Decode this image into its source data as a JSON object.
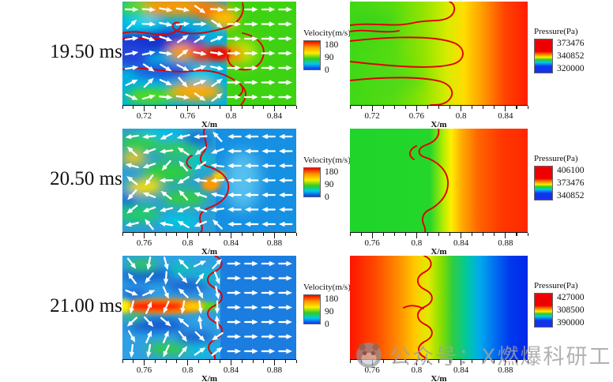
{
  "rows": [
    {
      "time_label": "19.50 ms",
      "velocity": {
        "legend_title": "Velocity(m/s)",
        "legend_values": [
          "180",
          "90",
          "0"
        ],
        "xticks": [
          "0.72",
          "0.76",
          "0.8",
          "0.84"
        ],
        "xlabel": "X/m"
      },
      "pressure": {
        "legend_title": "Pressure(Pa)",
        "legend_values": [
          "373476",
          "340852",
          "320000"
        ],
        "xticks": [
          "0.72",
          "0.76",
          "0.8",
          "0.84"
        ],
        "xlabel": "X/m"
      }
    },
    {
      "time_label": "20.50 ms",
      "velocity": {
        "legend_title": "Velocity(m/s)",
        "legend_values": [
          "180",
          "90",
          "0"
        ],
        "xticks": [
          "0.76",
          "0.8",
          "0.84",
          "0.88"
        ],
        "xlabel": "X/m"
      },
      "pressure": {
        "legend_title": "Pressure(Pa)",
        "legend_values": [
          "406100",
          "373476",
          "340852"
        ],
        "xticks": [
          "0.76",
          "0.8",
          "0.84",
          "0.88"
        ],
        "xlabel": "X/m"
      }
    },
    {
      "time_label": "21.00 ms",
      "velocity": {
        "legend_title": "Velocity(m/s)",
        "legend_values": [
          "180",
          "90",
          "0"
        ],
        "xticks": [
          "0.76",
          "0.8",
          "0.84",
          "0.88"
        ],
        "xlabel": "X/m"
      },
      "pressure": {
        "legend_title": "Pressure(Pa)",
        "legend_values": [
          "427000",
          "308500",
          "390000"
        ],
        "xticks": [
          "0.76",
          "0.8",
          "0.84",
          "0.88"
        ],
        "xlabel": "X/m"
      }
    }
  ],
  "watermark": {
    "icon": "wechat-panda-logo",
    "text": "公众号：X燃爆科研工作室"
  },
  "colors": {
    "flame_contour_red": "#e00000",
    "vector_arrow_white": "#ffffff",
    "watermark_gray": "#a2a2a2"
  },
  "chart_data": [
    {
      "type": "heatmap",
      "time": "19.50 ms",
      "quantity": "velocity",
      "xlabel": "X/m",
      "xlim": [
        0.7,
        0.86
      ],
      "xticks": [
        0.72,
        0.76,
        0.8,
        0.84
      ],
      "colorbar": {
        "label": "Velocity(m/s)",
        "tick_values": [
          180,
          90,
          0
        ],
        "range": [
          0,
          180
        ],
        "palette": "rainbow red-top to blue-bottom"
      },
      "overlays": [
        "white velocity vector arrows, mean flow pointing right",
        "red flame-front contour with three finger-like lobes near x≈0.78–0.80"
      ],
      "summary": "turbulent burned zone 0.70–0.79 (blue/cyan base with orange-red pockets near 180 m/s); uniform bright-green ≈120 m/s unburned flow ahead of the flame front"
    },
    {
      "type": "heatmap",
      "time": "19.50 ms",
      "quantity": "pressure",
      "xlabel": "X/m",
      "xlim": [
        0.7,
        0.86
      ],
      "xticks": [
        0.72,
        0.76,
        0.8,
        0.84
      ],
      "colorbar": {
        "label": "Pressure(Pa)",
        "tick_values": [
          373476,
          340852,
          320000
        ],
        "palette": "rainbow"
      },
      "overlays": [
        "three red flame-front fingers extending from left edge to x≈0.80"
      ],
      "summary": "green ≈330 kPa burned region on left rising through yellow (x≈0.80) to red ≈373 kPa at the right edge"
    },
    {
      "type": "heatmap",
      "time": "20.50 ms",
      "quantity": "velocity",
      "xlabel": "X/m",
      "xlim": [
        0.74,
        0.9
      ],
      "xticks": [
        0.76,
        0.8,
        0.84,
        0.88
      ],
      "colorbar": {
        "label": "Velocity(m/s)",
        "tick_values": [
          180,
          90,
          0
        ],
        "range": [
          0,
          180
        ],
        "palette": "rainbow red-top to blue-bottom"
      },
      "overlays": [
        "white vector arrows pointing left (reverse flow)",
        "red flame-front contour bulging right to x≈0.82"
      ],
      "summary": "turbulent green/cyan region with yellow pockets behind the flame (x<0.81); uniform medium-blue low-speed flow ahead, arrows directed leftward"
    },
    {
      "type": "heatmap",
      "time": "20.50 ms",
      "quantity": "pressure",
      "xlabel": "X/m",
      "xlim": [
        0.74,
        0.9
      ],
      "xticks": [
        0.76,
        0.8,
        0.84,
        0.88
      ],
      "colorbar": {
        "label": "Pressure(Pa)",
        "tick_values": [
          406100,
          373476,
          340852
        ],
        "palette": "rainbow"
      },
      "overlays": [
        "red flame-front contour with rounded bulge at x≈0.82"
      ],
      "summary": "flat green ≈355 kPa behind the flame, sharp yellow transition band at x≈0.83, orange-red ≈406 kPa ahead"
    },
    {
      "type": "heatmap",
      "time": "21.00 ms",
      "quantity": "velocity",
      "xlabel": "X/m",
      "xlim": [
        0.74,
        0.9
      ],
      "xticks": [
        0.76,
        0.8,
        0.84,
        0.88
      ],
      "colorbar": {
        "label": "Velocity(m/s)",
        "tick_values": [
          180,
          90,
          0
        ],
        "range": [
          0,
          180
        ],
        "palette": "rainbow red-top to blue-bottom"
      },
      "overlays": [
        "white vector arrows, chaotic directions behind flame, rightward ahead",
        "scalloped red flame-front contour at x≈0.815",
        "horizontal red-orange high-speed jet streak at mid-height reaching x≈0.79"
      ],
      "summary": "dark-blue turbulent burned zone with cyan/green streaks and a red ≈180 m/s jet at mid-channel; uniform blue flow ahead of the scalloped flame front"
    },
    {
      "type": "heatmap",
      "time": "21.00 ms",
      "quantity": "pressure",
      "xlabel": "X/m",
      "xlim": [
        0.74,
        0.9
      ],
      "xticks": [
        0.76,
        0.8,
        0.84,
        0.88
      ],
      "colorbar": {
        "label": "Pressure(Pa)",
        "tick_values": [
          427000,
          308500,
          390000
        ],
        "palette": "rainbow"
      },
      "overlays": [
        "scalloped red flame-front contour at x≈0.81 with leftward spur at mid-height"
      ],
      "summary": "red ≈427 kPa high-pressure burned region on left decaying through orange, yellow (x≈0.81), green (x≈0.84), cyan to deep blue at the right edge"
    }
  ]
}
